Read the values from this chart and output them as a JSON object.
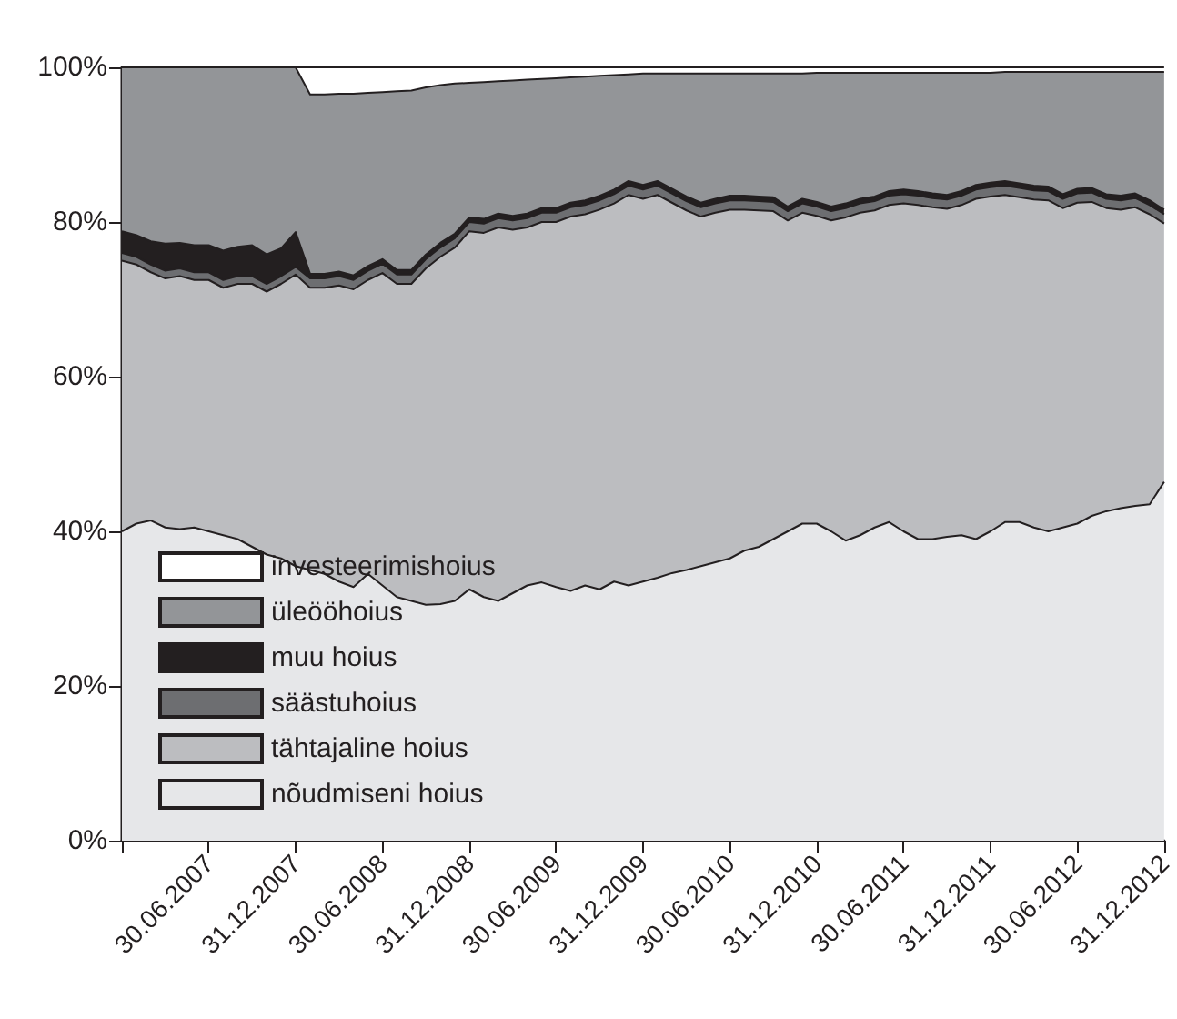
{
  "chart_data": {
    "type": "area",
    "stacked": true,
    "marker": "none",
    "grid": false,
    "legend": "bottom left",
    "categories": [
      null,
      null,
      null,
      null,
      null,
      null,
      "30.06.2007",
      null,
      null,
      null,
      null,
      null,
      "31.12.2007",
      null,
      null,
      null,
      null,
      null,
      "30.06.2008",
      null,
      null,
      null,
      null,
      null,
      "31.12.2008",
      null,
      null,
      null,
      null,
      null,
      "30.06.2009",
      null,
      null,
      null,
      null,
      null,
      "31.12.2009",
      null,
      null,
      null,
      null,
      null,
      "30.06.2010",
      null,
      null,
      null,
      null,
      null,
      "31.12.2010",
      null,
      null,
      null,
      null,
      null,
      "30.06.2011",
      null,
      null,
      null,
      null,
      null,
      "31.12.2011",
      null,
      null,
      null,
      null,
      null,
      "30.06.2012",
      null,
      null,
      null,
      null,
      null,
      "31.12.2012"
    ],
    "ylim": [
      0,
      100
    ],
    "yticks": [
      {
        "value": 0,
        "label": "0%"
      },
      {
        "value": 20,
        "label": "20%"
      },
      {
        "value": 40,
        "label": "40%"
      },
      {
        "value": 60,
        "label": "60%"
      },
      {
        "value": 80,
        "label": "80%"
      },
      {
        "value": 100,
        "label": "100%"
      }
    ],
    "series": [
      {
        "name": "nõudmiseni hoius",
        "color": "#e6e7e9",
        "values": [
          40,
          41,
          41.4,
          40.5,
          40.3,
          40.5,
          40,
          39.5,
          39,
          38,
          37,
          36.5,
          35.5,
          35,
          34.5,
          33.5,
          32.8,
          34.5,
          33,
          31.5,
          31,
          30.5,
          30.6,
          31,
          32.5,
          31.5,
          31,
          32,
          33,
          33.4,
          32.8,
          32.3,
          33,
          32.5,
          33.5,
          33,
          33.5,
          34,
          34.6,
          35,
          35.5,
          36,
          36.5,
          37.5,
          38,
          39,
          40,
          41,
          41,
          40,
          38.8,
          39.5,
          40.5,
          41.2,
          40,
          39,
          39,
          39.3,
          39.5,
          39,
          40,
          41.2,
          41.2,
          40.5,
          40,
          40.5,
          41,
          42,
          42.6,
          43,
          43.3,
          43.5,
          46.4
        ]
      },
      {
        "name": "tähtajaline hoius",
        "color": "#bcbdc0",
        "values": [
          35,
          33.5,
          32.1,
          32.2,
          32.7,
          32,
          32.5,
          32,
          33,
          34,
          34,
          35.5,
          37.7,
          36.5,
          37,
          38.3,
          38.5,
          38,
          40.4,
          40.5,
          41,
          43.5,
          44.9,
          45.7,
          46.3,
          47.1,
          48.3,
          47,
          46.3,
          46.6,
          47.2,
          48.4,
          48,
          49.1,
          48.9,
          50.5,
          49.5,
          49.5,
          47.9,
          46.5,
          45.2,
          45.2,
          45.1,
          44.1,
          43.5,
          42.4,
          40.2,
          40.2,
          39.8,
          40.2,
          41.8,
          41.7,
          41,
          41,
          42.4,
          43.2,
          42.9,
          42.4,
          42.7,
          44,
          43.3,
          42.3,
          42,
          42.4,
          42.8,
          41.3,
          41.5,
          40.6,
          39.2,
          38.6,
          38.6,
          37.5,
          33.4
        ]
      },
      {
        "name": "säästuhoius",
        "color": "#6d6e71",
        "values": [
          1,
          1,
          1,
          1,
          1,
          1,
          1,
          1,
          1,
          1,
          1,
          1,
          1,
          1.2,
          1.2,
          1.2,
          1.2,
          1.2,
          1.2,
          1.2,
          1.2,
          1.2,
          1.2,
          1.2,
          1.2,
          1.2,
          1.2,
          1.2,
          1.2,
          1.2,
          1.2,
          1.2,
          1.2,
          1.2,
          1.2,
          1.2,
          1.2,
          1.2,
          1.2,
          1.2,
          1.2,
          1.2,
          1.2,
          1.2,
          1.2,
          1.2,
          1.2,
          1.2,
          1.2,
          1.2,
          1.2,
          1.2,
          1.2,
          1.2,
          1.2,
          1.2,
          1.2,
          1.2,
          1.2,
          1.2,
          1.2,
          1.2,
          1.2,
          1.2,
          1.2,
          1.2,
          1.2,
          1.2,
          1.2,
          1.2,
          1.2,
          1.2,
          1.2
        ]
      },
      {
        "name": "muu hoius",
        "color": "#231f20",
        "values": [
          2.8,
          2.8,
          3,
          3.5,
          3.3,
          3.5,
          3.5,
          3.8,
          3.8,
          4,
          3.8,
          3.6,
          4.5,
          0.6,
          0.6,
          0.6,
          0.6,
          0.6,
          0.6,
          0.6,
          0.6,
          0.6,
          0.6,
          0.6,
          0.6,
          0.6,
          0.6,
          0.6,
          0.6,
          0.6,
          0.6,
          0.6,
          0.6,
          0.6,
          0.6,
          0.6,
          0.6,
          0.6,
          0.6,
          0.6,
          0.6,
          0.6,
          0.6,
          0.6,
          0.6,
          0.6,
          0.6,
          0.6,
          0.6,
          0.6,
          0.6,
          0.6,
          0.6,
          0.6,
          0.6,
          0.6,
          0.6,
          0.6,
          0.6,
          0.6,
          0.6,
          0.6,
          0.6,
          0.6,
          0.6,
          0.6,
          0.6,
          0.6,
          0.6,
          0.6,
          0.6,
          0.6,
          0.6
        ]
      },
      {
        "name": "üleööhoius",
        "color": "#939598",
        "values": [
          21.2,
          21.7,
          22.5,
          22.8,
          22.7,
          23,
          23,
          23.7,
          23.2,
          23,
          24.2,
          23.4,
          21.3,
          23.2,
          23.2,
          23,
          23.5,
          22.4,
          21.6,
          23.1,
          23.2,
          21.6,
          20.4,
          19.4,
          17.4,
          17.7,
          17.1,
          17.5,
          17.3,
          16.7,
          16.8,
          16.2,
          16,
          15.5,
          14.8,
          13.8,
          14.4,
          13.9,
          14.9,
          15.9,
          16.7,
          16.2,
          15.8,
          15.8,
          15.9,
          16,
          17.2,
          16.2,
          16.7,
          17.3,
          16.9,
          16.3,
          16,
          15.3,
          15.1,
          15.3,
          15.6,
          15.8,
          15.3,
          14.5,
          14.2,
          14.1,
          14.4,
          14.7,
          14.8,
          15.8,
          15.1,
          15,
          15.8,
          16,
          15.7,
          16.6,
          17.8
        ]
      },
      {
        "name": "investeerimishoius",
        "color": "#ffffff",
        "values": [
          0,
          0,
          0,
          0,
          0,
          0,
          0,
          0,
          0,
          0,
          0,
          0,
          0,
          3.5,
          3.5,
          3.4,
          3.4,
          3.3,
          3.2,
          3.1,
          3,
          2.6,
          2.3,
          2.1,
          2,
          1.9,
          1.8,
          1.7,
          1.6,
          1.5,
          1.4,
          1.3,
          1.2,
          1.1,
          1,
          0.9,
          0.8,
          0.8,
          0.8,
          0.8,
          0.8,
          0.8,
          0.8,
          0.8,
          0.8,
          0.8,
          0.8,
          0.8,
          0.7,
          0.7,
          0.7,
          0.7,
          0.7,
          0.7,
          0.7,
          0.7,
          0.7,
          0.7,
          0.7,
          0.7,
          0.7,
          0.6,
          0.6,
          0.6,
          0.6,
          0.6,
          0.6,
          0.6,
          0.6,
          0.6,
          0.6,
          0.6,
          0.6
        ]
      }
    ]
  }
}
